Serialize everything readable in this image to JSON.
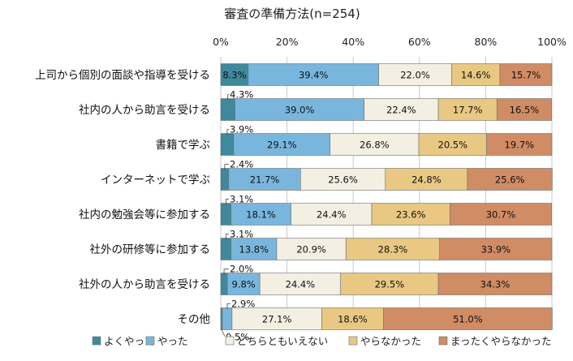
{
  "chart_data": {
    "type": "bar",
    "orientation": "horizontal",
    "stacked": "percent",
    "title": "審査の準備方法(n=254)",
    "xlim": [
      0,
      100
    ],
    "x_ticks": [
      "0%",
      "20%",
      "40%",
      "60%",
      "80%",
      "100%"
    ],
    "grid": true,
    "legend_position": "bottom",
    "categories": [
      "上司から個別の面談や指導を受ける",
      "社内の人から助言を受ける",
      "書籍で学ぶ",
      "インターネットで学ぶ",
      "社内の勉強会等に参加する",
      "社外の研修等に参加する",
      "社外の人から助言を受ける",
      "その他"
    ],
    "series": [
      {
        "name": "よくやった",
        "color": "#3e8a9c",
        "values": [
          8.3,
          4.3,
          3.9,
          2.4,
          3.1,
          3.1,
          2.0,
          0.5
        ]
      },
      {
        "name": "やった",
        "color": "#79b6de",
        "values": [
          39.4,
          39.0,
          29.1,
          21.7,
          18.1,
          13.8,
          9.8,
          2.9
        ]
      },
      {
        "name": "どちらともいえない",
        "color": "#f3efe3",
        "values": [
          22.0,
          22.4,
          26.8,
          25.6,
          24.4,
          20.9,
          24.4,
          27.1
        ]
      },
      {
        "name": "やらなかった",
        "color": "#e8c882",
        "values": [
          14.6,
          17.7,
          20.5,
          24.8,
          23.6,
          28.3,
          29.5,
          18.6
        ]
      },
      {
        "name": "まったくやらなかった",
        "color": "#d08c64",
        "values": [
          15.7,
          16.5,
          19.7,
          25.6,
          30.7,
          33.9,
          34.3,
          51.0
        ]
      }
    ],
    "value_labels": [
      [
        "8.3%",
        "39.4%",
        "22.0%",
        "14.6%",
        "15.7%"
      ],
      [
        "4.3%",
        "39.0%",
        "22.4%",
        "17.7%",
        "16.5%"
      ],
      [
        "3.9%",
        "29.1%",
        "26.8%",
        "20.5%",
        "19.7%"
      ],
      [
        "2.4%",
        "21.7%",
        "25.6%",
        "24.8%",
        "25.6%"
      ],
      [
        "3.1%",
        "18.1%",
        "24.4%",
        "23.6%",
        "30.7%"
      ],
      [
        "3.1%",
        "13.8%",
        "20.9%",
        "28.3%",
        "33.9%"
      ],
      [
        "2.0%",
        "9.8%",
        "24.4%",
        "29.5%",
        "34.3%"
      ],
      [
        "0.5%",
        "2.9%",
        "27.1%",
        "18.6%",
        "51.0%"
      ]
    ]
  }
}
